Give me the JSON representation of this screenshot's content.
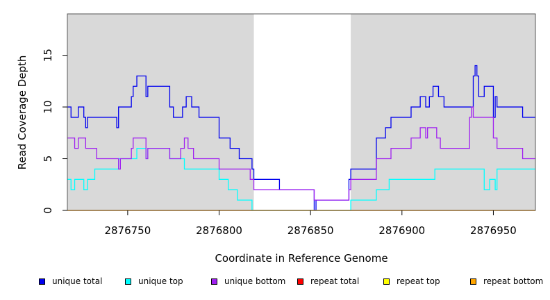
{
  "chart_data": {
    "type": "line",
    "title": "",
    "xlabel": "Coordinate in Reference Genome",
    "ylabel": "Read Coverage Depth",
    "xlim": [
      2876717,
      2876973
    ],
    "ylim": [
      0,
      19
    ],
    "x_ticks": [
      2876750,
      2876800,
      2876850,
      2876900,
      2876950
    ],
    "x_tick_labels": [
      "2876750",
      "2876800",
      "2876850",
      "2876900",
      "2876950"
    ],
    "y_ticks": [
      0,
      5,
      10,
      15
    ],
    "y_tick_labels": [
      "0",
      "5",
      "10",
      "15"
    ],
    "shaded_regions": [
      [
        2876717,
        2876819
      ],
      [
        2876872,
        2876973
      ]
    ],
    "shade_color": "#d9d9d9",
    "grid": false,
    "legend_position": "bottom",
    "series": [
      {
        "name": "unique total",
        "color": "#0000ee",
        "points": [
          [
            2876717,
            10
          ],
          [
            2876719,
            10
          ],
          [
            2876719,
            9
          ],
          [
            2876723,
            9
          ],
          [
            2876723,
            10
          ],
          [
            2876726,
            10
          ],
          [
            2876726,
            9
          ],
          [
            2876727,
            9
          ],
          [
            2876727,
            8
          ],
          [
            2876728,
            8
          ],
          [
            2876728,
            9
          ],
          [
            2876744,
            9
          ],
          [
            2876744,
            8
          ],
          [
            2876745,
            8
          ],
          [
            2876745,
            10
          ],
          [
            2876752,
            10
          ],
          [
            2876752,
            11
          ],
          [
            2876753,
            11
          ],
          [
            2876753,
            12
          ],
          [
            2876755,
            12
          ],
          [
            2876755,
            13
          ],
          [
            2876760,
            13
          ],
          [
            2876760,
            11
          ],
          [
            2876761,
            11
          ],
          [
            2876761,
            12
          ],
          [
            2876773,
            12
          ],
          [
            2876773,
            10
          ],
          [
            2876775,
            10
          ],
          [
            2876775,
            9
          ],
          [
            2876780,
            9
          ],
          [
            2876780,
            10
          ],
          [
            2876782,
            10
          ],
          [
            2876782,
            11
          ],
          [
            2876785,
            11
          ],
          [
            2876785,
            10
          ],
          [
            2876789,
            10
          ],
          [
            2876789,
            9
          ],
          [
            2876800,
            9
          ],
          [
            2876800,
            7
          ],
          [
            2876806,
            7
          ],
          [
            2876806,
            6
          ],
          [
            2876811,
            6
          ],
          [
            2876811,
            5
          ],
          [
            2876818,
            5
          ],
          [
            2876818,
            4
          ],
          [
            2876819,
            4
          ],
          [
            2876819,
            3
          ],
          [
            2876833,
            3
          ],
          [
            2876833,
            2
          ],
          [
            2876852,
            2
          ],
          [
            2876852,
            0
          ],
          [
            2876853,
            0
          ],
          [
            2876853,
            1
          ],
          [
            2876871,
            1
          ],
          [
            2876871,
            3
          ],
          [
            2876872,
            3
          ],
          [
            2876872,
            4
          ],
          [
            2876886,
            4
          ],
          [
            2876886,
            7
          ],
          [
            2876891,
            7
          ],
          [
            2876891,
            8
          ],
          [
            2876894,
            8
          ],
          [
            2876894,
            9
          ],
          [
            2876905,
            9
          ],
          [
            2876905,
            10
          ],
          [
            2876910,
            10
          ],
          [
            2876910,
            11
          ],
          [
            2876913,
            11
          ],
          [
            2876913,
            10
          ],
          [
            2876915,
            10
          ],
          [
            2876915,
            11
          ],
          [
            2876917,
            11
          ],
          [
            2876917,
            12
          ],
          [
            2876920,
            12
          ],
          [
            2876920,
            11
          ],
          [
            2876923,
            11
          ],
          [
            2876923,
            10
          ],
          [
            2876939,
            10
          ],
          [
            2876939,
            13
          ],
          [
            2876940,
            13
          ],
          [
            2876940,
            14
          ],
          [
            2876941,
            14
          ],
          [
            2876941,
            13
          ],
          [
            2876942,
            13
          ],
          [
            2876942,
            11
          ],
          [
            2876945,
            11
          ],
          [
            2876945,
            12
          ],
          [
            2876950,
            12
          ],
          [
            2876950,
            9
          ],
          [
            2876951,
            9
          ],
          [
            2876951,
            11
          ],
          [
            2876952,
            11
          ],
          [
            2876952,
            10
          ],
          [
            2876966,
            10
          ],
          [
            2876966,
            9
          ],
          [
            2876973,
            9
          ]
        ]
      },
      {
        "name": "unique top",
        "color": "#00ffff",
        "points": [
          [
            2876717,
            3
          ],
          [
            2876719,
            3
          ],
          [
            2876719,
            2
          ],
          [
            2876721,
            2
          ],
          [
            2876721,
            3
          ],
          [
            2876726,
            3
          ],
          [
            2876726,
            2
          ],
          [
            2876728,
            2
          ],
          [
            2876728,
            3
          ],
          [
            2876732,
            3
          ],
          [
            2876732,
            4
          ],
          [
            2876745,
            4
          ],
          [
            2876745,
            5
          ],
          [
            2876755,
            5
          ],
          [
            2876755,
            6
          ],
          [
            2876760,
            6
          ],
          [
            2876760,
            5
          ],
          [
            2876761,
            5
          ],
          [
            2876761,
            6
          ],
          [
            2876773,
            6
          ],
          [
            2876773,
            5
          ],
          [
            2876781,
            5
          ],
          [
            2876781,
            4
          ],
          [
            2876800,
            4
          ],
          [
            2876800,
            3
          ],
          [
            2876805,
            3
          ],
          [
            2876805,
            2
          ],
          [
            2876810,
            2
          ],
          [
            2876810,
            1
          ],
          [
            2876818,
            1
          ],
          [
            2876818,
            0
          ],
          [
            2876872,
            0
          ],
          [
            2876872,
            1
          ],
          [
            2876886,
            1
          ],
          [
            2876886,
            2
          ],
          [
            2876893,
            2
          ],
          [
            2876893,
            3
          ],
          [
            2876918,
            3
          ],
          [
            2876918,
            4
          ],
          [
            2876945,
            4
          ],
          [
            2876945,
            2
          ],
          [
            2876948,
            2
          ],
          [
            2876948,
            3
          ],
          [
            2876951,
            3
          ],
          [
            2876951,
            2
          ],
          [
            2876952,
            2
          ],
          [
            2876952,
            4
          ],
          [
            2876973,
            4
          ]
        ]
      },
      {
        "name": "unique bottom",
        "color": "#a020f0",
        "points": [
          [
            2876717,
            7
          ],
          [
            2876721,
            7
          ],
          [
            2876721,
            6
          ],
          [
            2876723,
            6
          ],
          [
            2876723,
            7
          ],
          [
            2876727,
            7
          ],
          [
            2876727,
            6
          ],
          [
            2876733,
            6
          ],
          [
            2876733,
            5
          ],
          [
            2876745,
            5
          ],
          [
            2876745,
            4
          ],
          [
            2876746,
            4
          ],
          [
            2876746,
            5
          ],
          [
            2876752,
            5
          ],
          [
            2876752,
            6
          ],
          [
            2876753,
            6
          ],
          [
            2876753,
            7
          ],
          [
            2876760,
            7
          ],
          [
            2876760,
            5
          ],
          [
            2876761,
            5
          ],
          [
            2876761,
            6
          ],
          [
            2876773,
            6
          ],
          [
            2876773,
            5
          ],
          [
            2876779,
            5
          ],
          [
            2876779,
            6
          ],
          [
            2876781,
            6
          ],
          [
            2876781,
            7
          ],
          [
            2876783,
            7
          ],
          [
            2876783,
            6
          ],
          [
            2876786,
            6
          ],
          [
            2876786,
            5
          ],
          [
            2876800,
            5
          ],
          [
            2876800,
            4
          ],
          [
            2876817,
            4
          ],
          [
            2876817,
            3
          ],
          [
            2876819,
            3
          ],
          [
            2876819,
            2
          ],
          [
            2876852,
            2
          ],
          [
            2876852,
            1
          ],
          [
            2876871,
            1
          ],
          [
            2876871,
            2
          ],
          [
            2876872,
            2
          ],
          [
            2876872,
            3
          ],
          [
            2876886,
            3
          ],
          [
            2876886,
            5
          ],
          [
            2876894,
            5
          ],
          [
            2876894,
            6
          ],
          [
            2876905,
            6
          ],
          [
            2876905,
            7
          ],
          [
            2876910,
            7
          ],
          [
            2876910,
            8
          ],
          [
            2876913,
            8
          ],
          [
            2876913,
            7
          ],
          [
            2876914,
            7
          ],
          [
            2876914,
            8
          ],
          [
            2876919,
            8
          ],
          [
            2876919,
            7
          ],
          [
            2876921,
            7
          ],
          [
            2876921,
            6
          ],
          [
            2876937,
            6
          ],
          [
            2876937,
            9
          ],
          [
            2876938,
            9
          ],
          [
            2876938,
            10
          ],
          [
            2876939,
            10
          ],
          [
            2876939,
            9
          ],
          [
            2876950,
            9
          ],
          [
            2876950,
            7
          ],
          [
            2876952,
            7
          ],
          [
            2876952,
            6
          ],
          [
            2876966,
            6
          ],
          [
            2876966,
            5
          ],
          [
            2876973,
            5
          ]
        ]
      },
      {
        "name": "repeat total",
        "color": "#ff0000",
        "points": [
          [
            2876717,
            0
          ],
          [
            2876973,
            0
          ]
        ]
      },
      {
        "name": "repeat top",
        "color": "#ffff00",
        "points": [
          [
            2876717,
            0
          ],
          [
            2876973,
            0
          ]
        ]
      },
      {
        "name": "repeat bottom",
        "color": "#ffa500",
        "points": [
          [
            2876717,
            0
          ],
          [
            2876973,
            0
          ]
        ]
      }
    ]
  }
}
